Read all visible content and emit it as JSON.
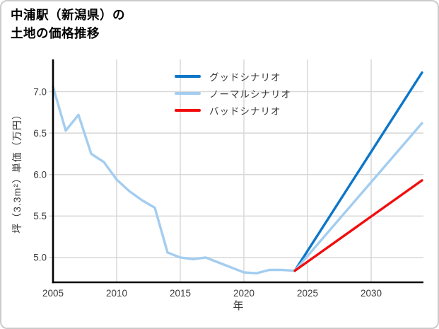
{
  "title": {
    "line1": "中浦駅（新潟県）の",
    "line2": "土地の価格推移"
  },
  "colors": {
    "good": "#0d76c8",
    "normal": "#a3cdf0",
    "bad": "#f20d0d",
    "grid": "#d8d8d8",
    "axis": "#000000",
    "tick_text": "#3b3b3b",
    "border": "#cbcbcb"
  },
  "chart_data": {
    "type": "line",
    "title": "中浦駅（新潟県）の土地の価格推移",
    "xlabel": "年",
    "ylabel": "坪（3.3m²）単価（万円）",
    "grid": true,
    "legend_position": "upper-left-of-plot",
    "xlim": [
      2005,
      2034.11
    ],
    "ylim": [
      4.701,
      7.388
    ],
    "x_ticks": [
      2005,
      2010,
      2015,
      2020,
      2025,
      2030
    ],
    "x_tick_labels": [
      "2005",
      "2010",
      "2015",
      "2020",
      "2025",
      "2030"
    ],
    "y_ticks": [
      5.0,
      5.5,
      6.0,
      6.5,
      7.0
    ],
    "y_tick_labels": [
      "5.0",
      "5.5",
      "6.0",
      "6.5",
      "7.0"
    ],
    "series": [
      {
        "name": "グッドシナリオ",
        "color": "#0d76c8",
        "x": [
          2024,
          2034
        ],
        "values": [
          4.84,
          7.23
        ]
      },
      {
        "name": "ノーマルシナリオ",
        "color": "#a3cdf0",
        "x": [
          2005,
          2006,
          2007,
          2008,
          2009,
          2010,
          2011,
          2012,
          2013,
          2014,
          2015,
          2016,
          2017,
          2018,
          2019,
          2020,
          2021,
          2022,
          2023,
          2024,
          2034
        ],
        "values": [
          7.06,
          6.53,
          6.72,
          6.25,
          6.15,
          5.94,
          5.8,
          5.69,
          5.6,
          5.06,
          5.0,
          4.98,
          5.0,
          4.94,
          4.88,
          4.82,
          4.81,
          4.85,
          4.85,
          4.84,
          6.62
        ]
      },
      {
        "name": "バッドシナリオ",
        "color": "#f20d0d",
        "x": [
          2024,
          2034
        ],
        "values": [
          4.84,
          5.93
        ]
      }
    ]
  }
}
